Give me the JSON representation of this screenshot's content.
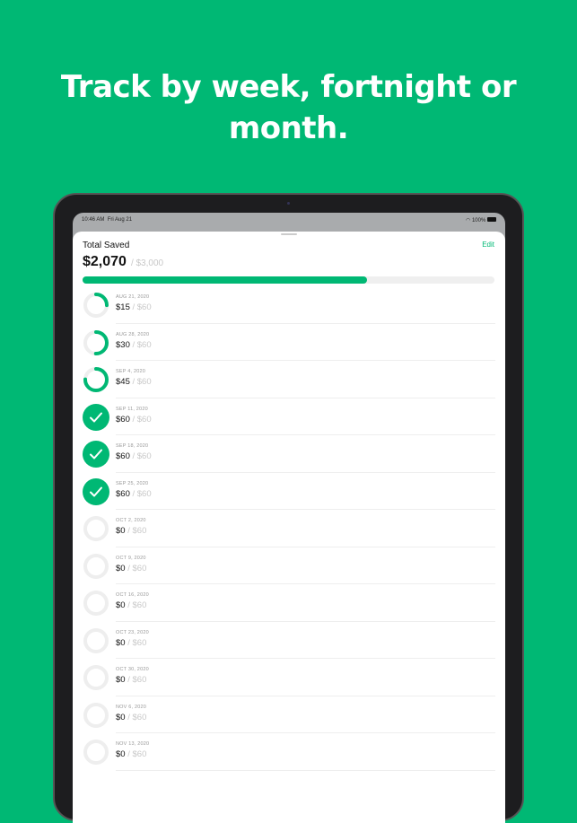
{
  "headline": "Track by week, fortnight or month.",
  "status": {
    "time": "10:46 AM",
    "date": "Fri Aug 21",
    "battery": "100%"
  },
  "header": {
    "title": "Total Saved",
    "edit_label": "Edit",
    "saved": "$2,070",
    "goal": "/ $3,000",
    "progress": 0.69
  },
  "accent": "#00b874",
  "rows": [
    {
      "date": "AUG 21, 2020",
      "amount": "$15",
      "target": "/ $60",
      "fraction": 0.25
    },
    {
      "date": "AUG 28, 2020",
      "amount": "$30",
      "target": "/ $60",
      "fraction": 0.5
    },
    {
      "date": "SEP 4, 2020",
      "amount": "$45",
      "target": "/ $60",
      "fraction": 0.75
    },
    {
      "date": "SEP 11, 2020",
      "amount": "$60",
      "target": "/ $60",
      "fraction": 1
    },
    {
      "date": "SEP 18, 2020",
      "amount": "$60",
      "target": "/ $60",
      "fraction": 1
    },
    {
      "date": "SEP 25, 2020",
      "amount": "$60",
      "target": "/ $60",
      "fraction": 1
    },
    {
      "date": "OCT 2, 2020",
      "amount": "$0",
      "target": "/ $60",
      "fraction": 0
    },
    {
      "date": "OCT 9, 2020",
      "amount": "$0",
      "target": "/ $60",
      "fraction": 0
    },
    {
      "date": "OCT 16, 2020",
      "amount": "$0",
      "target": "/ $60",
      "fraction": 0
    },
    {
      "date": "OCT 23, 2020",
      "amount": "$0",
      "target": "/ $60",
      "fraction": 0
    },
    {
      "date": "OCT 30, 2020",
      "amount": "$0",
      "target": "/ $60",
      "fraction": 0
    },
    {
      "date": "NOV 6, 2020",
      "amount": "$0",
      "target": "/ $60",
      "fraction": 0
    },
    {
      "date": "NOV 13, 2020",
      "amount": "$0",
      "target": "/ $60",
      "fraction": 0
    }
  ]
}
